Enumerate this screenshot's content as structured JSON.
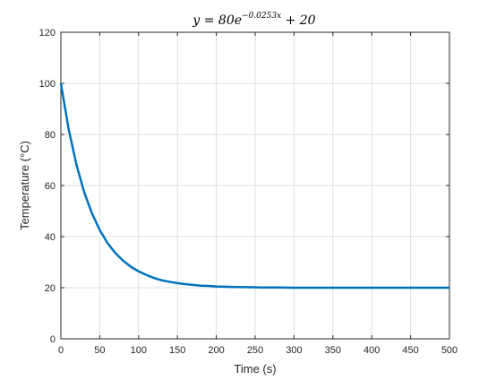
{
  "chart_data": {
    "type": "line",
    "title": {
      "prefix": "y = 80e",
      "exponent": "−0.0253x",
      "suffix": " + 20"
    },
    "xlabel": "Time (s)",
    "ylabel": "Temperature (°C)",
    "xlim": [
      0,
      500
    ],
    "ylim": [
      0,
      120
    ],
    "xticks": [
      0,
      50,
      100,
      150,
      200,
      250,
      300,
      350,
      400,
      450,
      500
    ],
    "yticks": [
      0,
      20,
      40,
      60,
      80,
      100,
      120
    ],
    "grid": true,
    "series": [
      {
        "color": "#0072BD",
        "x": [
          0,
          10,
          20,
          30,
          40,
          50,
          60,
          70,
          80,
          90,
          100,
          110,
          120,
          130,
          140,
          150,
          160,
          170,
          180,
          190,
          200,
          220,
          240,
          260,
          280,
          300,
          350,
          400,
          450,
          500
        ],
        "y": [
          100,
          82.1,
          68.2,
          57.4,
          49.1,
          42.6,
          37.5,
          33.6,
          30.6,
          28.2,
          26.4,
          25.0,
          23.8,
          22.9,
          22.3,
          21.8,
          21.4,
          21.1,
          20.8,
          20.7,
          20.5,
          20.3,
          20.2,
          20.1,
          20.1,
          20.0,
          20.0,
          20.0,
          20.0,
          20.0
        ]
      }
    ]
  },
  "colors": {
    "line": "#0072BD",
    "grid": "#dfdfdf",
    "axis": "#262626"
  }
}
